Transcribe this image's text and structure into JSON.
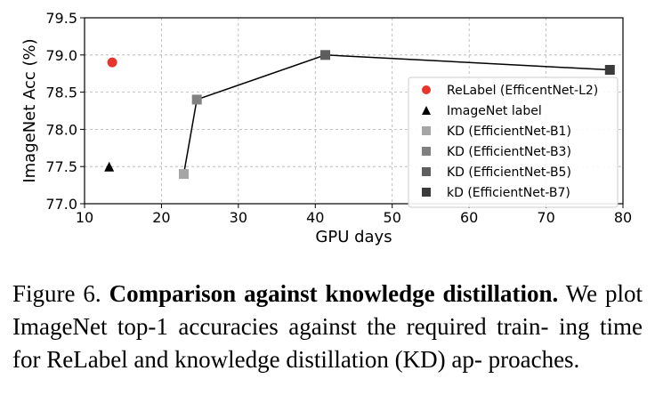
{
  "chart_data": {
    "type": "scatter",
    "xlabel": "GPU days",
    "ylabel": "ImageNet Acc (%)",
    "xlim": [
      10,
      80
    ],
    "ylim": [
      77.0,
      79.5
    ],
    "xticks": [
      "10",
      "20",
      "30",
      "40",
      "50",
      "60",
      "70",
      "80"
    ],
    "yticks": [
      "77.0",
      "77.5",
      "78.0",
      "78.5",
      "79.0",
      "79.5"
    ],
    "grid": true,
    "legend_position": "center-right",
    "series": [
      {
        "name": "ReLabel (EfficentNet-L2)",
        "marker": "circle",
        "color": "#e8352b",
        "points": [
          {
            "x": 13.6,
            "y": 78.9
          }
        ]
      },
      {
        "name": "ImageNet label",
        "marker": "triangle",
        "color": "#000000",
        "points": [
          {
            "x": 13.2,
            "y": 77.5
          }
        ]
      },
      {
        "name": "KD (EfficientNet-B1)",
        "marker": "square",
        "color": "#a6a6a6",
        "points": [
          {
            "x": 22.9,
            "y": 77.4
          }
        ]
      },
      {
        "name": "KD (EfficientNet-B3)",
        "marker": "square",
        "color": "#808080",
        "points": [
          {
            "x": 24.6,
            "y": 78.4
          }
        ]
      },
      {
        "name": "KD (EfficientNet-B5)",
        "marker": "square",
        "color": "#5e5e5e",
        "points": [
          {
            "x": 41.3,
            "y": 79.0
          }
        ]
      },
      {
        "name": "kD (EfficientNet-B7)",
        "marker": "square",
        "color": "#3a3a3a",
        "points": [
          {
            "x": 78.3,
            "y": 78.8
          }
        ]
      }
    ],
    "connecting_line": {
      "series_indices": [
        2,
        3,
        4,
        5
      ],
      "color": "#000000"
    }
  },
  "caption": {
    "label": "Figure 6.",
    "bold": "Comparison against knowledge distillation.",
    "lines": [
      "We",
      "plot ImageNet top-1 accuracies against the required train-",
      "ing time for ReLabel and knowledge distillation (KD) ap-",
      "proaches."
    ]
  }
}
